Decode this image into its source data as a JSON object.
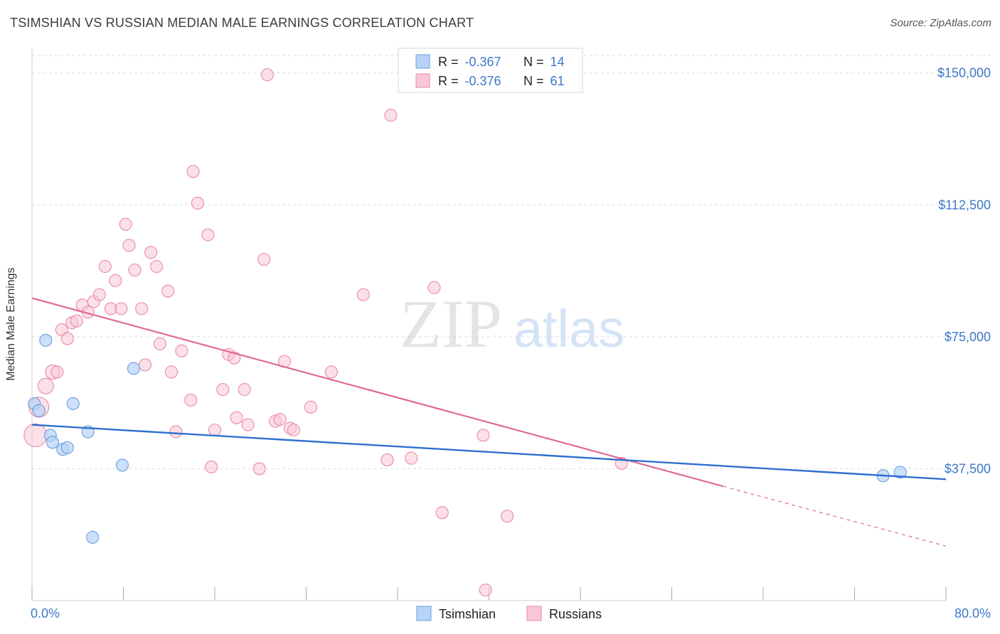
{
  "header": {
    "title": "TSIMSHIAN VS RUSSIAN MEDIAN MALE EARNINGS CORRELATION CHART",
    "source": "Source: ZipAtlas.com"
  },
  "watermark": {
    "zip": "ZIP",
    "atlas": "atlas"
  },
  "colors": {
    "tsimshian_fill": "#b7d3f7",
    "tsimshian_stroke": "#6b9ee0",
    "tsimshian_line": "#2f6fcf",
    "russians_fill": "#f9c6d5",
    "russians_stroke": "#e98aa8",
    "russians_line": "#e06a93",
    "tick_label": "#3e78c9",
    "grid": "#dddddd"
  },
  "chart_data": {
    "type": "scatter",
    "title": "TSIMSHIAN VS RUSSIAN MEDIAN MALE EARNINGS CORRELATION CHART",
    "ylabel": "Median Male Earnings",
    "xlabel": "",
    "xlim": [
      0,
      80
    ],
    "ylim": [
      0,
      155000
    ],
    "x_tick_labels": [
      "0.0%",
      "80.0%"
    ],
    "y_ticks": [
      37500,
      75000,
      112500,
      150000
    ],
    "y_tick_labels": [
      "$37,500",
      "$75,000",
      "$112,500",
      "$150,000"
    ],
    "grid": true,
    "legend_top": [
      {
        "r_label": "R = ",
        "r_value": "-0.367",
        "n_label": "N = ",
        "n_value": "14"
      },
      {
        "r_label": "R = ",
        "r_value": "-0.376",
        "n_label": "N = ",
        "n_value": "61"
      }
    ],
    "legend_bottom_position": "bottom-center",
    "series": [
      {
        "name": "Tsimshian",
        "points": [
          [
            0.2,
            56000
          ],
          [
            0.6,
            54000
          ],
          [
            1.2,
            74000
          ],
          [
            1.6,
            47000
          ],
          [
            1.8,
            45000
          ],
          [
            2.7,
            43000
          ],
          [
            3.1,
            43500
          ],
          [
            3.6,
            56000
          ],
          [
            4.9,
            48000
          ],
          [
            5.3,
            18000
          ],
          [
            7.9,
            38500
          ],
          [
            8.9,
            66000
          ],
          [
            74.5,
            35500
          ],
          [
            76.0,
            36500
          ]
        ],
        "trend": {
          "x": [
            0,
            80
          ],
          "y": [
            50000,
            34500
          ]
        }
      },
      {
        "name": "Russians",
        "points": [
          [
            0.3,
            47000
          ],
          [
            0.6,
            55000
          ],
          [
            1.2,
            61000
          ],
          [
            1.8,
            65000
          ],
          [
            2.2,
            65000
          ],
          [
            2.6,
            77000
          ],
          [
            3.1,
            74500
          ],
          [
            3.5,
            79000
          ],
          [
            3.9,
            79500
          ],
          [
            4.4,
            84000
          ],
          [
            4.9,
            82000
          ],
          [
            5.4,
            85000
          ],
          [
            5.9,
            87000
          ],
          [
            6.4,
            95000
          ],
          [
            6.9,
            83000
          ],
          [
            7.3,
            91000
          ],
          [
            7.8,
            83000
          ],
          [
            8.2,
            107000
          ],
          [
            8.5,
            101000
          ],
          [
            9.0,
            94000
          ],
          [
            9.6,
            83000
          ],
          [
            9.9,
            67000
          ],
          [
            10.4,
            99000
          ],
          [
            10.9,
            95000
          ],
          [
            11.2,
            73000
          ],
          [
            11.9,
            88000
          ],
          [
            12.2,
            65000
          ],
          [
            12.6,
            48000
          ],
          [
            13.1,
            71000
          ],
          [
            13.9,
            57000
          ],
          [
            14.1,
            122000
          ],
          [
            14.5,
            113000
          ],
          [
            15.4,
            104000
          ],
          [
            15.7,
            38000
          ],
          [
            16.0,
            48500
          ],
          [
            16.7,
            60000
          ],
          [
            17.2,
            70000
          ],
          [
            17.7,
            69000
          ],
          [
            17.9,
            52000
          ],
          [
            18.6,
            60000
          ],
          [
            18.9,
            50000
          ],
          [
            19.9,
            37500
          ],
          [
            20.3,
            97000
          ],
          [
            20.6,
            149500
          ],
          [
            21.3,
            51000
          ],
          [
            21.7,
            51500
          ],
          [
            22.1,
            68000
          ],
          [
            22.6,
            49000
          ],
          [
            22.9,
            48500
          ],
          [
            24.4,
            55000
          ],
          [
            26.2,
            65000
          ],
          [
            29.0,
            87000
          ],
          [
            31.1,
            40000
          ],
          [
            31.4,
            138000
          ],
          [
            33.2,
            40500
          ],
          [
            35.2,
            89000
          ],
          [
            35.9,
            25000
          ],
          [
            39.5,
            47000
          ],
          [
            39.7,
            3000
          ],
          [
            41.6,
            24000
          ],
          [
            51.6,
            39000
          ]
        ],
        "trend": {
          "x": [
            0,
            60.5
          ],
          "y": [
            86000,
            32500
          ]
        },
        "trend_extension": {
          "x": [
            60.5,
            80
          ],
          "y": [
            32500,
            15500
          ]
        }
      }
    ]
  }
}
